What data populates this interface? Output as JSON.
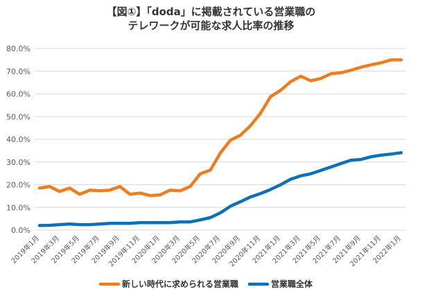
{
  "chart_data": {
    "type": "line",
    "title_line1": "【図①】「doda」に掲載されている営業職の",
    "title_line2": "テレワークが可能な求人比率の推移",
    "x": [
      "2019年1月",
      "2019年2月",
      "2019年3月",
      "2019年4月",
      "2019年5月",
      "2019年6月",
      "2019年7月",
      "2019年8月",
      "2019年9月",
      "2019年10月",
      "2019年11月",
      "2019年12月",
      "2020年1月",
      "2020年2月",
      "2020年3月",
      "2020年4月",
      "2020年5月",
      "2020年6月",
      "2020年7月",
      "2020年8月",
      "2020年9月",
      "2020年10月",
      "2020年11月",
      "2020年12月",
      "2021年1月",
      "2021年2月",
      "2021年3月",
      "2021年4月",
      "2021年5月",
      "2021年6月",
      "2021年7月",
      "2021年8月",
      "2021年9月",
      "2021年10月",
      "2021年11月",
      "2021年12月",
      "2022年1月"
    ],
    "x_tick_labels": [
      "2019年1月",
      "2019年3月",
      "2019年5月",
      "2019年7月",
      "2019年9月",
      "2019年11月",
      "2020年1月",
      "2020年3月",
      "2020年5月",
      "2020年7月",
      "2020年9月",
      "2020年11月",
      "2021年1月",
      "2021年3月",
      "2021年5月",
      "2021年7月",
      "2021年9月",
      "2021年11月",
      "2022年1月"
    ],
    "y_tick_labels": [
      "0.0%",
      "10.0%",
      "20.0%",
      "30.0%",
      "40.0%",
      "50.0%",
      "60.0%",
      "70.0%",
      "80.0%"
    ],
    "ylim": [
      0,
      80
    ],
    "grid": true,
    "legend_position": "bottom",
    "series": [
      {
        "name": "新しい時代に求められる営業職",
        "color": "#ED7D1F",
        "values": [
          18.5,
          19.2,
          17.0,
          18.5,
          15.8,
          17.6,
          17.3,
          17.6,
          19.2,
          15.8,
          16.3,
          15.2,
          15.5,
          17.6,
          17.3,
          19.2,
          24.8,
          26.4,
          34.0,
          39.6,
          41.8,
          46.0,
          51.5,
          58.8,
          61.6,
          65.4,
          67.8,
          65.8,
          66.8,
          68.9,
          69.3,
          70.4,
          71.8,
          72.8,
          73.7,
          75.0,
          75.0
        ]
      },
      {
        "name": "営業職全体",
        "color": "#0D70BA",
        "values": [
          2.0,
          2.1,
          2.4,
          2.7,
          2.4,
          2.4,
          2.7,
          3.0,
          3.0,
          3.0,
          3.3,
          3.3,
          3.3,
          3.3,
          3.6,
          3.6,
          4.5,
          5.5,
          7.6,
          10.5,
          12.5,
          14.6,
          16.1,
          17.9,
          20.0,
          22.4,
          23.9,
          24.8,
          26.3,
          27.8,
          29.3,
          30.8,
          31.1,
          32.3,
          33.0,
          33.5,
          34.1
        ]
      }
    ]
  }
}
